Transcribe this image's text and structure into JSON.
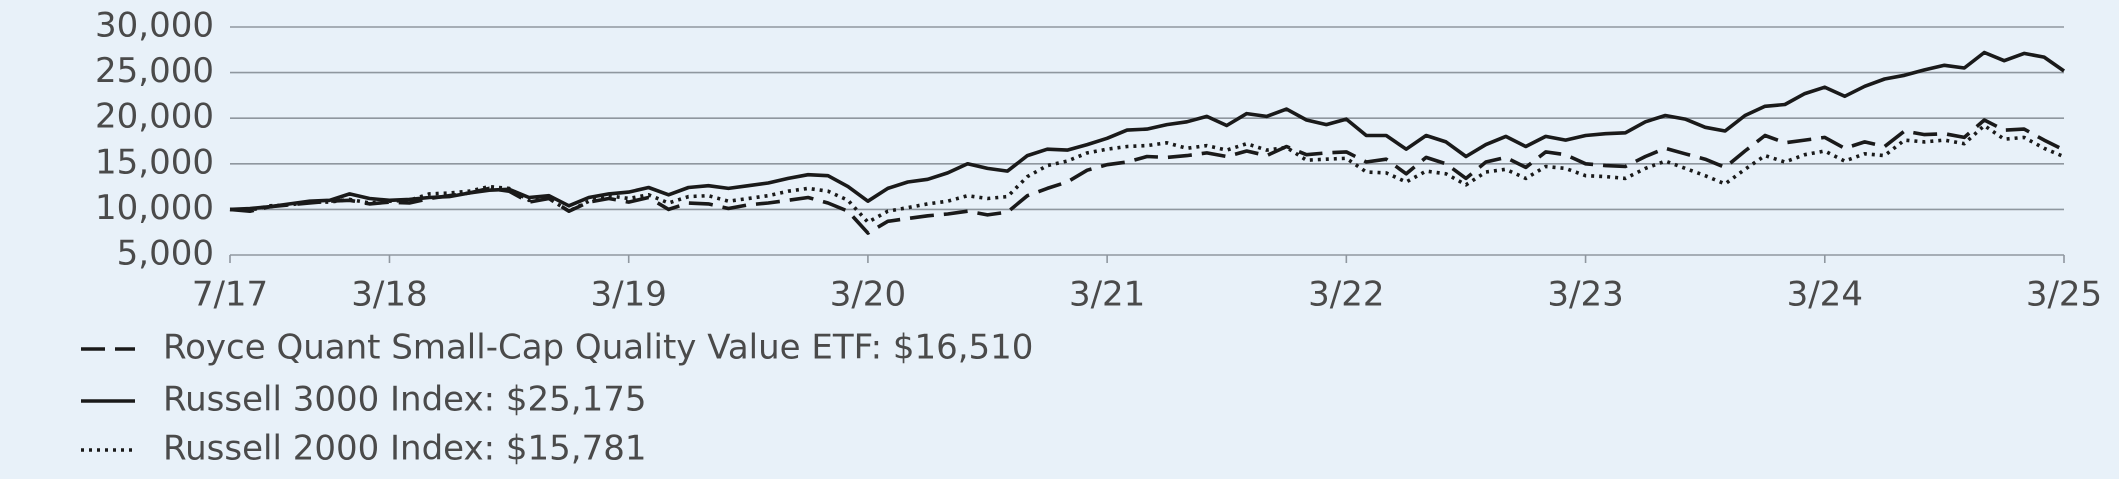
{
  "chart_data": {
    "type": "line",
    "categories": [
      "7/17",
      null,
      null,
      null,
      null,
      null,
      null,
      null,
      "3/18",
      null,
      null,
      null,
      null,
      null,
      null,
      null,
      null,
      null,
      null,
      null,
      "3/19",
      null,
      null,
      null,
      null,
      null,
      null,
      null,
      null,
      null,
      null,
      null,
      "3/20",
      null,
      null,
      null,
      null,
      null,
      null,
      null,
      null,
      null,
      null,
      null,
      "3/21",
      null,
      null,
      null,
      null,
      null,
      null,
      null,
      null,
      null,
      null,
      null,
      "3/22",
      null,
      null,
      null,
      null,
      null,
      null,
      null,
      null,
      null,
      null,
      null,
      "3/23",
      null,
      null,
      null,
      null,
      null,
      null,
      null,
      null,
      null,
      null,
      null,
      "3/24",
      null,
      null,
      null,
      null,
      null,
      null,
      null,
      null,
      null,
      null,
      null,
      "3/25"
    ],
    "series": [
      {
        "name": "Royce Quant Small-Cap Quality Value ETF: $16,510",
        "color": "#1a1a1a",
        "line_style": "dashed",
        "values": [
          10000,
          9800,
          10300,
          10500,
          10700,
          10900,
          11000,
          10600,
          10800,
          10700,
          11200,
          11500,
          11800,
          12300,
          12000,
          10800,
          11200,
          9800,
          10800,
          11200,
          10800,
          11300,
          10000,
          10700,
          10600,
          10100,
          10500,
          10700,
          11000,
          11300,
          10700,
          9800,
          7400,
          8700,
          9000,
          9300,
          9500,
          9800,
          9400,
          9700,
          11500,
          12300,
          13000,
          14300,
          14900,
          15200,
          15800,
          15700,
          15900,
          16200,
          15800,
          16400,
          15900,
          16900,
          16000,
          16200,
          16300,
          15200,
          15500,
          13900,
          15700,
          15000,
          13400,
          15200,
          15700,
          14600,
          16300,
          16000,
          15000,
          14800,
          14700,
          15800,
          16700,
          16100,
          15500,
          14600,
          16400,
          18100,
          17300,
          17600,
          17900,
          16700,
          17400,
          16900,
          18600,
          18200,
          18300,
          17900,
          19800,
          18700,
          18800,
          17600,
          16510
        ]
      },
      {
        "name": "Russell 3000 Index: $25,175",
        "color": "#1a1a1a",
        "line_style": "solid",
        "values": [
          10000,
          10100,
          10300,
          10600,
          10900,
          11000,
          11700,
          11200,
          11000,
          11100,
          11300,
          11400,
          11800,
          12100,
          12200,
          11300,
          11500,
          10400,
          11300,
          11700,
          11900,
          12400,
          11600,
          12400,
          12600,
          12300,
          12600,
          12900,
          13400,
          13800,
          13700,
          12500,
          10900,
          12300,
          13000,
          13300,
          14000,
          15000,
          14500,
          14200,
          15900,
          16600,
          16500,
          17100,
          17800,
          18700,
          18800,
          19300,
          19600,
          20200,
          19200,
          20500,
          20200,
          21000,
          19800,
          19300,
          19900,
          18100,
          18100,
          16600,
          18100,
          17400,
          15800,
          17100,
          18000,
          16900,
          18000,
          17600,
          18100,
          18300,
          18400,
          19600,
          20300,
          19900,
          19000,
          18600,
          20300,
          21300,
          21500,
          22700,
          23400,
          22400,
          23500,
          24300,
          24700,
          25300,
          25800,
          25500,
          27200,
          26300,
          27100,
          26700,
          25175
        ]
      },
      {
        "name": "Russell 2000 Index: $15,781",
        "color": "#1a1a1a",
        "line_style": "dotted",
        "values": [
          10000,
          9900,
          10400,
          10500,
          10800,
          10800,
          11100,
          10700,
          10900,
          11000,
          11700,
          11800,
          12000,
          12500,
          12300,
          11000,
          11200,
          9800,
          10900,
          11500,
          11200,
          11600,
          10700,
          11400,
          11500,
          10900,
          11200,
          11500,
          12000,
          12300,
          12000,
          11000,
          8600,
          9800,
          10200,
          10600,
          10900,
          11500,
          11200,
          11400,
          13600,
          14800,
          15300,
          16200,
          16600,
          16900,
          17000,
          17300,
          16700,
          17000,
          16500,
          17200,
          16500,
          16800,
          15400,
          15500,
          15600,
          14100,
          14000,
          13000,
          14200,
          13900,
          12700,
          14100,
          14400,
          13400,
          14700,
          14500,
          13700,
          13600,
          13400,
          14500,
          15300,
          14500,
          13700,
          12800,
          14400,
          15900,
          15200,
          16000,
          16400,
          15300,
          16100,
          15900,
          17600,
          17400,
          17600,
          17200,
          19200,
          17700,
          17900,
          16700,
          15781
        ]
      }
    ],
    "ylim": [
      5000,
      30000
    ],
    "yticks": [
      {
        "value": 5000,
        "label": "5,000"
      },
      {
        "value": 10000,
        "label": "10,000"
      },
      {
        "value": 15000,
        "label": "15,000"
      },
      {
        "value": 20000,
        "label": "20,000"
      },
      {
        "value": 25000,
        "label": "25,000"
      },
      {
        "value": 30000,
        "label": "30,000"
      }
    ],
    "grid": true,
    "legend": "bottom-left"
  }
}
